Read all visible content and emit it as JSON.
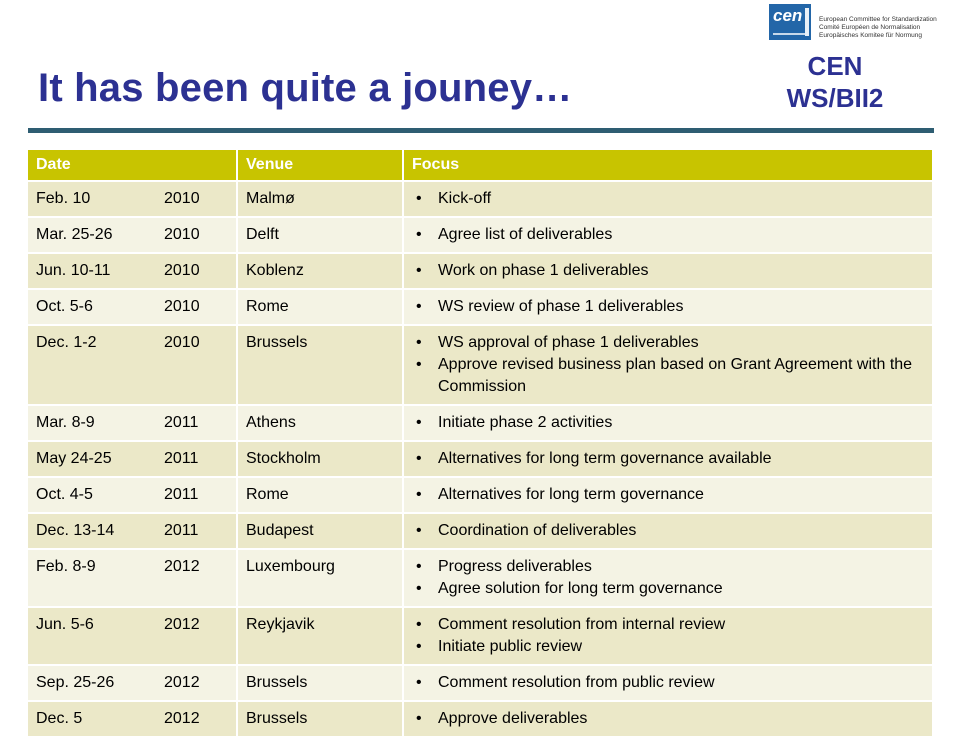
{
  "header": {
    "title": "It has been quite a jouney…",
    "org_logo_text": "cen",
    "org_lines": [
      "European Committee for Standardization",
      "Comité Européen de Normalisation",
      "Europäisches Komitee für Normung"
    ],
    "ws_line1": "CEN",
    "ws_line2": "WS/BII2"
  },
  "colors": {
    "title": "#2c3192",
    "header_row": "#c8c400",
    "row_dark": "#ebe8c8",
    "row_light": "#f4f3e4",
    "divider": "#2e5d72",
    "logo": "#2366a8"
  },
  "table": {
    "columns": [
      "Date",
      "Venue",
      "Focus"
    ],
    "rows": [
      {
        "date": "Feb. 10",
        "year": "2010",
        "venue": "Malmø",
        "focus": [
          "Kick-off"
        ]
      },
      {
        "date": "Mar. 25-26",
        "year": "2010",
        "venue": "Delft",
        "focus": [
          "Agree list of deliverables"
        ]
      },
      {
        "date": "Jun. 10-11",
        "year": "2010",
        "venue": "Koblenz",
        "focus": [
          "Work on phase 1 deliverables"
        ]
      },
      {
        "date": "Oct. 5-6",
        "year": "2010",
        "venue": "Rome",
        "focus": [
          "WS review of phase 1 deliverables"
        ]
      },
      {
        "date": "Dec. 1-2",
        "year": "2010",
        "venue": "Brussels",
        "focus": [
          "WS approval of phase 1 deliverables",
          "Approve revised business plan based on Grant Agreement with the Commission"
        ]
      },
      {
        "date": "Mar. 8-9",
        "year": "2011",
        "venue": "Athens",
        "focus": [
          "Initiate phase 2 activities"
        ]
      },
      {
        "date": "May 24-25",
        "year": "2011",
        "venue": "Stockholm",
        "focus": [
          "Alternatives for long term governance available"
        ]
      },
      {
        "date": "Oct. 4-5",
        "year": "2011",
        "venue": "Rome",
        "focus": [
          "Alternatives for long term governance"
        ]
      },
      {
        "date": "Dec. 13-14",
        "year": "2011",
        "venue": "Budapest",
        "focus": [
          "Coordination of deliverables"
        ]
      },
      {
        "date": "Feb. 8-9",
        "year": "2012",
        "venue": "Luxembourg",
        "focus": [
          "Progress deliverables",
          "Agree solution for long term governance"
        ]
      },
      {
        "date": "Jun. 5-6",
        "year": "2012",
        "venue": "Reykjavik",
        "focus": [
          "Comment resolution from internal review",
          "Initiate public review"
        ]
      },
      {
        "date": "Sep. 25-26",
        "year": "2012",
        "venue": "Brussels",
        "focus": [
          "Comment resolution from public review"
        ]
      },
      {
        "date": "Dec. 5",
        "year": "2012",
        "venue": "Brussels",
        "focus": [
          "Approve deliverables"
        ]
      }
    ]
  }
}
